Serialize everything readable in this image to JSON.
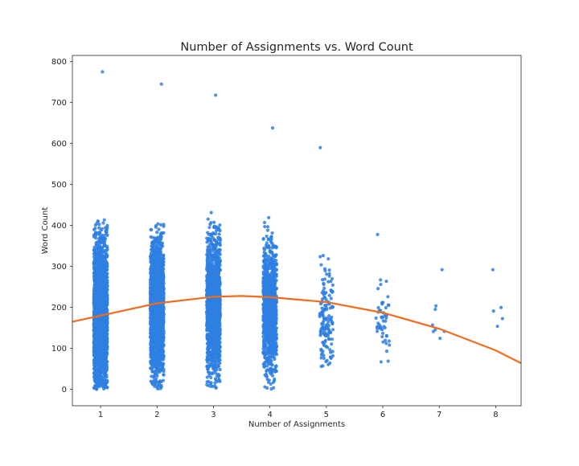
{
  "chart_data": {
    "type": "scatter",
    "title": "Number of Assignments vs. Word Count",
    "xlabel": "Number of Assignments",
    "ylabel": "Word Count",
    "xlim": [
      0.5,
      8.45
    ],
    "ylim": [
      -40,
      815
    ],
    "x_ticks": [
      1,
      2,
      3,
      4,
      5,
      6,
      7,
      8
    ],
    "x_tick_labels": [
      "1",
      "2",
      "3",
      "4",
      "5",
      "6",
      "7",
      "8"
    ],
    "y_ticks": [
      0,
      100,
      200,
      300,
      400,
      500,
      600,
      700,
      800
    ],
    "y_tick_labels": [
      "0",
      "100",
      "200",
      "300",
      "400",
      "500",
      "600",
      "700",
      "800"
    ],
    "grid": false,
    "point_color": "#2e7fe0",
    "trend_color": "#f36b1c",
    "jitter": 0.12,
    "groups": [
      {
        "x": 1,
        "count": 2600,
        "max": 775,
        "center": 185,
        "spread": 125
      },
      {
        "x": 2,
        "count": 1700,
        "max": 745,
        "center": 200,
        "spread": 120
      },
      {
        "x": 3,
        "count": 1500,
        "max": 718,
        "center": 205,
        "spread": 120
      },
      {
        "x": 4,
        "count": 1000,
        "max": 638,
        "center": 200,
        "spread": 115
      },
      {
        "x": 5,
        "count": 150,
        "max": 590,
        "center": 170,
        "spread": 90
      },
      {
        "x": 6,
        "count": 50,
        "max": 378,
        "center": 170,
        "spread": 70
      },
      {
        "x": 7,
        "count": 8,
        "max": 292,
        "center": 160,
        "spread": 60
      },
      {
        "x": 8,
        "count": 5,
        "max": 292,
        "center": 200,
        "spread": 55
      }
    ],
    "trend": {
      "type": "quadratic",
      "x": [
        0.5,
        1,
        2,
        3,
        3.5,
        4,
        5,
        6,
        7,
        8,
        8.45
      ],
      "y": [
        165,
        180,
        210,
        226,
        228,
        225,
        213,
        187,
        148,
        95,
        64
      ]
    }
  }
}
